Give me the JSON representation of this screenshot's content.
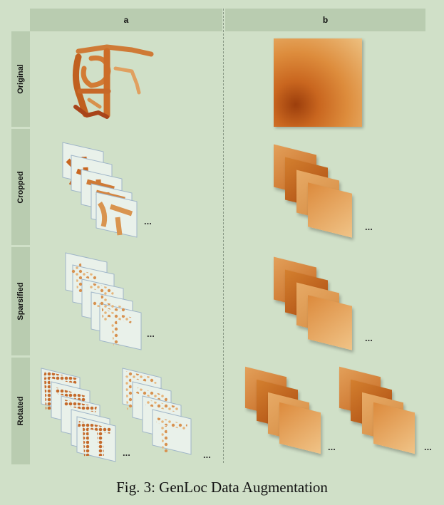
{
  "columns": {
    "a": "a",
    "b": "b"
  },
  "rows": [
    "Original",
    "Cropped",
    "Sparsified",
    "Rotated"
  ],
  "ellipsis": "...",
  "caption": "Fig. 3: GenLoc Data Augmentation",
  "colors": {
    "background": "#d0e0c8",
    "header": "#b9ccb0",
    "dark_orange": "#9c3e0c",
    "mid_orange": "#dd8c3c",
    "light_orange": "#f0c488"
  }
}
